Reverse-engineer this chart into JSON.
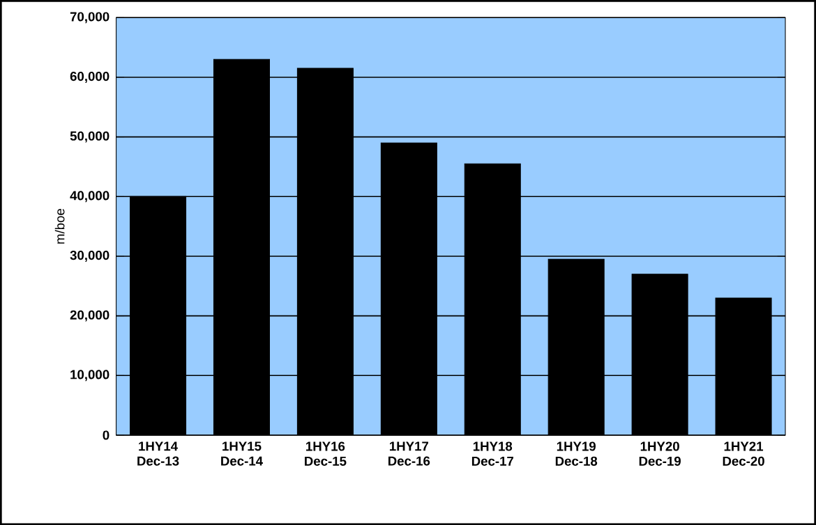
{
  "chart_data": {
    "type": "bar",
    "ylabel": "m/boe",
    "categories": [
      "1HY14 Dec-13",
      "1HY15 Dec-14",
      "1HY16 Dec-15",
      "1HY17 Dec-16",
      "1HY18 Dec-17",
      "1HY19 Dec-18",
      "1HY20 Dec-19",
      "1HY21 Dec-20"
    ],
    "values": [
      40000,
      63000,
      61500,
      49000,
      45500,
      29500,
      27000,
      23000
    ],
    "color": "#000000",
    "ylim": [
      0,
      70000
    ],
    "yticks": [
      {
        "value": 0,
        "label": "0"
      },
      {
        "value": 10000,
        "label": "10,000"
      },
      {
        "value": 20000,
        "label": "20,000"
      },
      {
        "value": 30000,
        "label": "30,000"
      },
      {
        "value": 40000,
        "label": "40,000"
      },
      {
        "value": 50000,
        "label": "50,000"
      },
      {
        "value": 60000,
        "label": "60,000"
      },
      {
        "value": 70000,
        "label": "70,000"
      }
    ],
    "grid": "y"
  }
}
